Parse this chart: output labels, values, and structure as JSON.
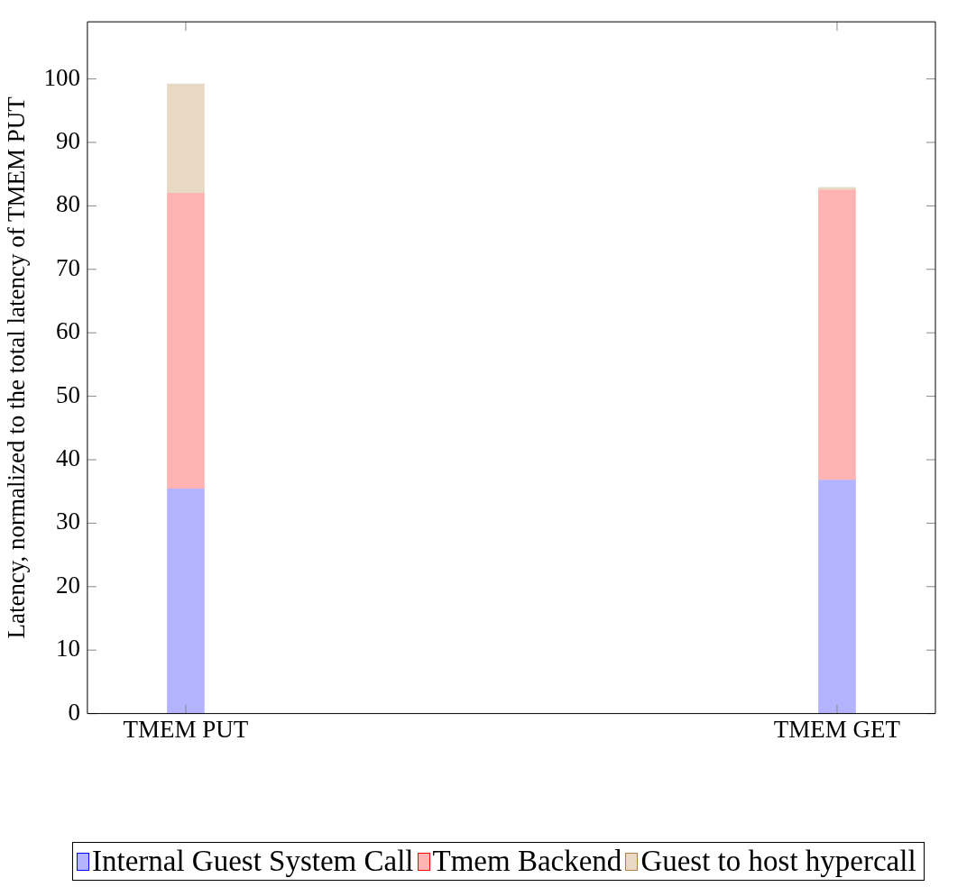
{
  "chart_data": {
    "type": "bar",
    "stacked": true,
    "ylabel": "Latency, normalized to the total latency of TMEM PUT",
    "categories": [
      "TMEM PUT",
      "TMEM GET"
    ],
    "series": [
      {
        "name": "Internal Guest System Call",
        "color": "#b3b3ff",
        "values": [
          35.4,
          36.8
        ]
      },
      {
        "name": "Tmem Backend",
        "color": "#ffb3b3",
        "values": [
          46.6,
          45.7
        ]
      },
      {
        "name": "Guest to host hypercall",
        "color": "#e8d9c5",
        "values": [
          17.2,
          0.4
        ]
      }
    ],
    "ylim": [
      0,
      109
    ],
    "yticks": [
      0,
      10,
      20,
      30,
      40,
      50,
      60,
      70,
      80,
      90,
      100
    ],
    "grid": false,
    "legend": "bottom"
  }
}
